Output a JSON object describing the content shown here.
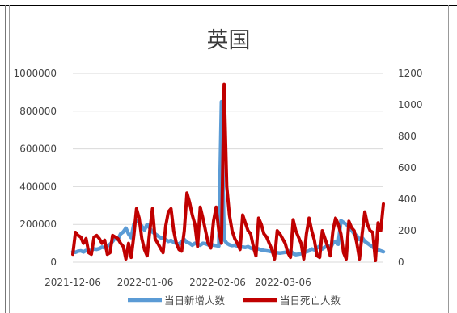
{
  "chart_data": {
    "type": "line",
    "title": "英国",
    "xlabel": "",
    "ylabel": "",
    "x_ticks": [
      "2021-12-06",
      "2022-01-06",
      "2022-02-06",
      "2022-03-06"
    ],
    "x_range": [
      "2021-12-06",
      "2022-04-18"
    ],
    "y_left": {
      "range": [
        0,
        1000000
      ],
      "ticks": [
        "0",
        "200000",
        "400000",
        "600000",
        "800000",
        "1000000"
      ]
    },
    "y_right": {
      "range": [
        0,
        1200
      ],
      "ticks": [
        "0",
        "200",
        "400",
        "600",
        "800",
        "1000",
        "1200"
      ]
    },
    "grid": true,
    "legend_position": "bottom",
    "series": [
      {
        "name": "当日新增人数",
        "axis": "left",
        "color": "#5b9bd5",
        "values": [
          55000,
          52000,
          58000,
          60000,
          54000,
          62000,
          58000,
          64000,
          70000,
          68000,
          72000,
          80000,
          76000,
          85000,
          95000,
          110000,
          130000,
          120000,
          150000,
          160000,
          180000,
          150000,
          130000,
          200000,
          220000,
          210000,
          190000,
          170000,
          200000,
          180000,
          160000,
          150000,
          140000,
          130000,
          125000,
          120000,
          110000,
          115000,
          105000,
          100000,
          95000,
          110000,
          120000,
          105000,
          100000,
          90000,
          100000,
          95000,
          90000,
          100000,
          98000,
          92000,
          95000,
          90000,
          88000,
          85000,
          850000,
          120000,
          100000,
          92000,
          88000,
          90000,
          85000,
          80000,
          80000,
          78000,
          82000,
          75000,
          70000,
          72000,
          70000,
          65000,
          62000,
          60000,
          58000,
          55000,
          52000,
          50000,
          48000,
          50000,
          52000,
          55000,
          60000,
          45000,
          40000,
          42000,
          45000,
          50000,
          55000,
          60000,
          70000,
          65000,
          75000,
          85000,
          70000,
          80000,
          90000,
          75000,
          100000,
          110000,
          95000,
          220000,
          210000,
          200000,
          190000,
          170000,
          150000,
          140000,
          120000,
          130000,
          110000,
          100000,
          90000,
          80000,
          70000,
          65000,
          60000,
          55000
        ]
      },
      {
        "name": "当日死亡人数",
        "axis": "right",
        "color": "#c00000",
        "values": [
          50,
          190,
          170,
          160,
          120,
          150,
          60,
          50,
          160,
          170,
          150,
          120,
          140,
          50,
          60,
          170,
          160,
          150,
          120,
          100,
          20,
          120,
          30,
          170,
          340,
          280,
          150,
          80,
          40,
          200,
          340,
          150,
          120,
          90,
          60,
          230,
          320,
          340,
          200,
          120,
          80,
          70,
          200,
          440,
          380,
          300,
          240,
          100,
          350,
          280,
          200,
          120,
          90,
          260,
          350,
          200,
          120,
          1130,
          480,
          300,
          200,
          150,
          120,
          80,
          300,
          250,
          200,
          180,
          100,
          40,
          280,
          240,
          180,
          160,
          120,
          80,
          20,
          200,
          180,
          150,
          120,
          60,
          30,
          270,
          200,
          160,
          120,
          20,
          180,
          280,
          200,
          140,
          40,
          30,
          200,
          150,
          100,
          40,
          200,
          280,
          240,
          180,
          60,
          20,
          260,
          220,
          200,
          120,
          20,
          180,
          320,
          240,
          200,
          190,
          10,
          250,
          200,
          370
        ]
      }
    ]
  }
}
